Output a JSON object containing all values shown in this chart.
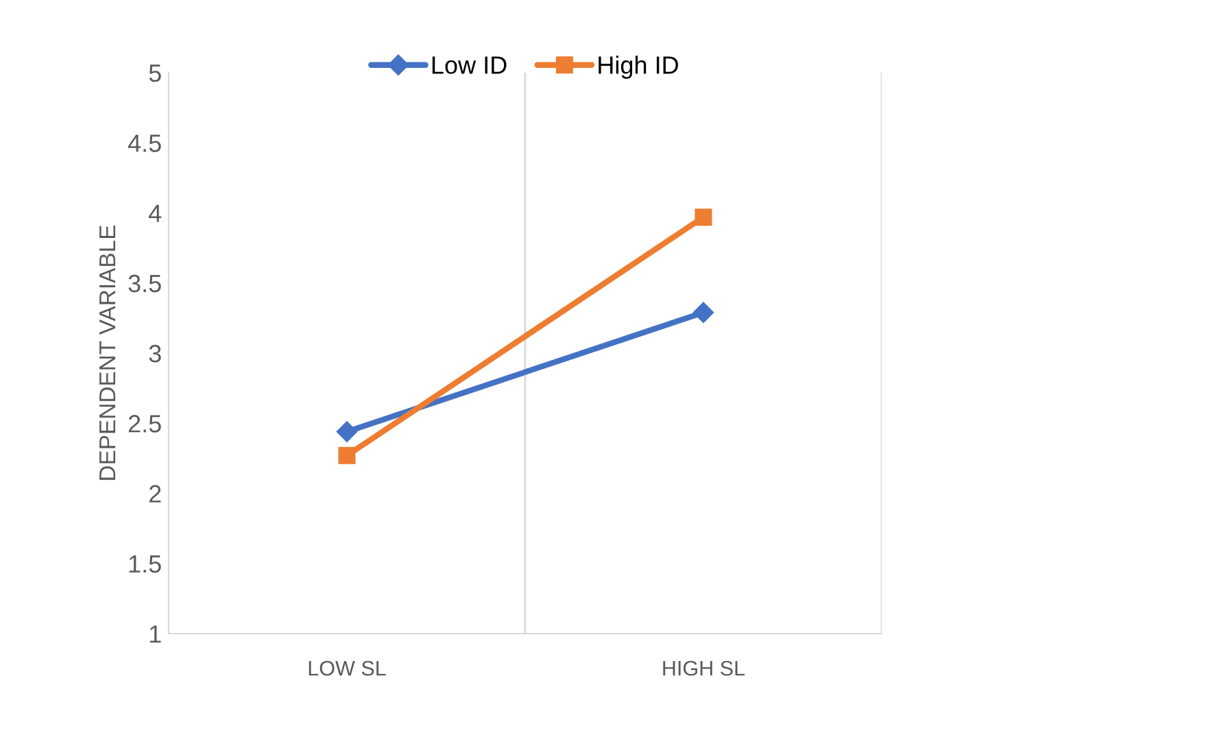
{
  "chart_data": {
    "type": "line",
    "ylabel": "DEPENDENT VARIABLE",
    "categories": [
      "LOW SL",
      "HIGH SL"
    ],
    "series": [
      {
        "name": "Low ID",
        "color": "#4472c4",
        "marker": "diamond",
        "values": [
          2.44,
          3.29
        ]
      },
      {
        "name": "High ID",
        "color": "#ed7d31",
        "marker": "square",
        "values": [
          2.27,
          3.97
        ]
      }
    ],
    "ylim": [
      1,
      5
    ],
    "yticks": [
      1,
      1.5,
      2,
      2.5,
      3,
      3.5,
      4,
      4.5,
      5
    ],
    "grid": "x",
    "legend": "top",
    "line_style": "solid"
  }
}
